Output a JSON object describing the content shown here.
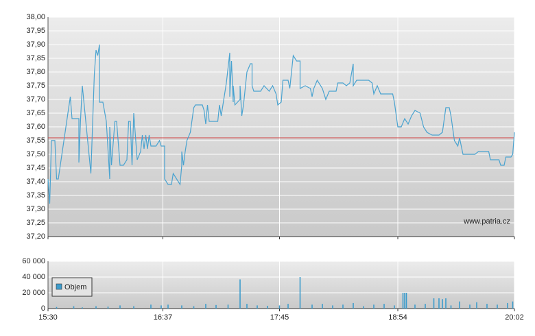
{
  "chart_data": [
    {
      "type": "line",
      "x": [
        930,
        931,
        932,
        934,
        935,
        936,
        943,
        944,
        948,
        948,
        949,
        950,
        955,
        957,
        958,
        959,
        960,
        960,
        962,
        964,
        966,
        966,
        967,
        969,
        970,
        972,
        974,
        976,
        977,
        978,
        979,
        980,
        982,
        984,
        985,
        986,
        987,
        988,
        989,
        990,
        993,
        995,
        996,
        998,
        998,
        1000,
        1002,
        1003,
        1005,
        1007,
        1008,
        1008,
        1009,
        1010,
        1011,
        1013,
        1015,
        1016,
        1020,
        1021,
        1022,
        1023,
        1024,
        1029,
        1030,
        1031,
        1034,
        1036,
        1036,
        1037,
        1038,
        1038,
        1039,
        1042,
        1042,
        1043,
        1044,
        1046,
        1048,
        1049,
        1049,
        1050,
        1054,
        1056,
        1059,
        1061,
        1063,
        1064,
        1066,
        1067,
        1069,
        1070,
        1071,
        1073,
        1075,
        1077,
        1077,
        1080,
        1083,
        1084,
        1085,
        1087,
        1090,
        1092,
        1094,
        1098,
        1099,
        1102,
        1104,
        1106,
        1108,
        1108,
        1110,
        1117,
        1119,
        1120,
        1122,
        1124,
        1131,
        1132,
        1134,
        1136,
        1138,
        1140,
        1142,
        1144,
        1147,
        1149,
        1151,
        1154,
        1158,
        1160,
        1162,
        1164,
        1165,
        1167,
        1169,
        1170,
        1172,
        1179,
        1181,
        1187,
        1188,
        1193,
        1194,
        1196,
        1197,
        1200,
        1201,
        1202
      ],
      "values": [
        37.41,
        37.32,
        37.55,
        37.55,
        37.41,
        37.41,
        37.71,
        37.63,
        37.63,
        37.47,
        37.63,
        37.75,
        37.43,
        37.79,
        37.88,
        37.86,
        37.9,
        37.69,
        37.69,
        37.62,
        37.41,
        37.6,
        37.46,
        37.62,
        37.62,
        37.46,
        37.46,
        37.48,
        37.62,
        37.62,
        37.46,
        37.65,
        37.48,
        37.51,
        37.57,
        37.52,
        37.57,
        37.52,
        37.57,
        37.53,
        37.53,
        37.55,
        37.53,
        37.53,
        37.41,
        37.39,
        37.39,
        37.43,
        37.41,
        37.39,
        37.46,
        37.51,
        37.46,
        37.51,
        37.55,
        37.58,
        37.67,
        37.68,
        37.68,
        37.66,
        37.61,
        37.68,
        37.62,
        37.62,
        37.68,
        37.64,
        37.76,
        37.87,
        37.71,
        37.84,
        37.69,
        37.75,
        37.68,
        37.7,
        37.75,
        37.64,
        37.68,
        37.8,
        37.83,
        37.83,
        37.75,
        37.73,
        37.73,
        37.75,
        37.73,
        37.75,
        37.72,
        37.68,
        37.69,
        37.77,
        37.77,
        37.77,
        37.74,
        37.86,
        37.84,
        37.84,
        37.74,
        37.75,
        37.74,
        37.71,
        37.74,
        37.77,
        37.74,
        37.7,
        37.73,
        37.73,
        37.76,
        37.76,
        37.75,
        37.76,
        37.83,
        37.75,
        37.77,
        37.77,
        37.76,
        37.72,
        37.75,
        37.72,
        37.72,
        37.69,
        37.6,
        37.6,
        37.63,
        37.61,
        37.64,
        37.66,
        37.65,
        37.6,
        37.58,
        37.57,
        37.57,
        37.58,
        37.67,
        37.67,
        37.64,
        37.55,
        37.53,
        37.56,
        37.5,
        37.5,
        37.51,
        37.51,
        37.48,
        37.48,
        37.46,
        37.46,
        37.49,
        37.49,
        37.5,
        37.58
      ],
      "color": "#4aa3d0",
      "reference_value": 37.56,
      "reference_color": "#d04040",
      "xlim": [
        930,
        1202
      ],
      "ylim": [
        37.2,
        38.0
      ],
      "yticks": [
        {
          "value": 37.2,
          "label": "37,20"
        },
        {
          "value": 37.25,
          "label": "37,25"
        },
        {
          "value": 37.3,
          "label": "37,30"
        },
        {
          "value": 37.35,
          "label": "37,35"
        },
        {
          "value": 37.4,
          "label": "37,40"
        },
        {
          "value": 37.45,
          "label": "37,45"
        },
        {
          "value": 37.5,
          "label": "37,50"
        },
        {
          "value": 37.55,
          "label": "37,55"
        },
        {
          "value": 37.6,
          "label": "37,60"
        },
        {
          "value": 37.65,
          "label": "37,65"
        },
        {
          "value": 37.7,
          "label": "37,70"
        },
        {
          "value": 37.75,
          "label": "37,75"
        },
        {
          "value": 37.8,
          "label": "37,80"
        },
        {
          "value": 37.85,
          "label": "37,85"
        },
        {
          "value": 37.9,
          "label": "37,90"
        },
        {
          "value": 37.95,
          "label": "37,95"
        },
        {
          "value": 38.0,
          "label": "38,00"
        }
      ],
      "grid": true,
      "watermark": "www.patria.cz"
    },
    {
      "type": "bar",
      "x": [
        935,
        945,
        950,
        958,
        965,
        972,
        980,
        990,
        996,
        1000,
        1008,
        1015,
        1022,
        1028,
        1035,
        1042,
        1046,
        1052,
        1058,
        1065,
        1070,
        1077,
        1084,
        1090,
        1096,
        1102,
        1108,
        1114,
        1120,
        1126,
        1132,
        1137,
        1138,
        1139,
        1144,
        1150,
        1155,
        1158,
        1160,
        1162,
        1165,
        1170,
        1176,
        1180,
        1186,
        1192,
        1198,
        1201
      ],
      "series": [
        {
          "name": "Objem",
          "color": "#3d9ccc",
          "values": [
            2000,
            3000,
            1500,
            3000,
            2500,
            4000,
            3000,
            5000,
            4000,
            5000,
            4000,
            3000,
            6000,
            4500,
            5000,
            37000,
            6000,
            4000,
            3500,
            4000,
            6000,
            40000,
            5000,
            6000,
            4000,
            5000,
            7000,
            3000,
            5000,
            6000,
            4000,
            20000,
            20000,
            20000,
            5000,
            6000,
            13000,
            13000,
            12000,
            13000,
            4000,
            9000,
            5000,
            8000,
            6000,
            5000,
            7000,
            9000
          ]
        }
      ],
      "xlim": [
        930,
        1202
      ],
      "xticks": [
        {
          "value": 930,
          "label": "15:30"
        },
        {
          "value": 997,
          "label": "16:37"
        },
        {
          "value": 1065,
          "label": "17:45"
        },
        {
          "value": 1134,
          "label": "18:54"
        },
        {
          "value": 1202,
          "label": "20:02"
        }
      ],
      "ylim": [
        0,
        60000
      ],
      "yticks": [
        0,
        {
          "value": 20000,
          "label": "20 000"
        },
        {
          "value": 40000,
          "label": "40 000"
        },
        {
          "value": 60000,
          "label": "60 000"
        }
      ],
      "grid": true
    }
  ]
}
